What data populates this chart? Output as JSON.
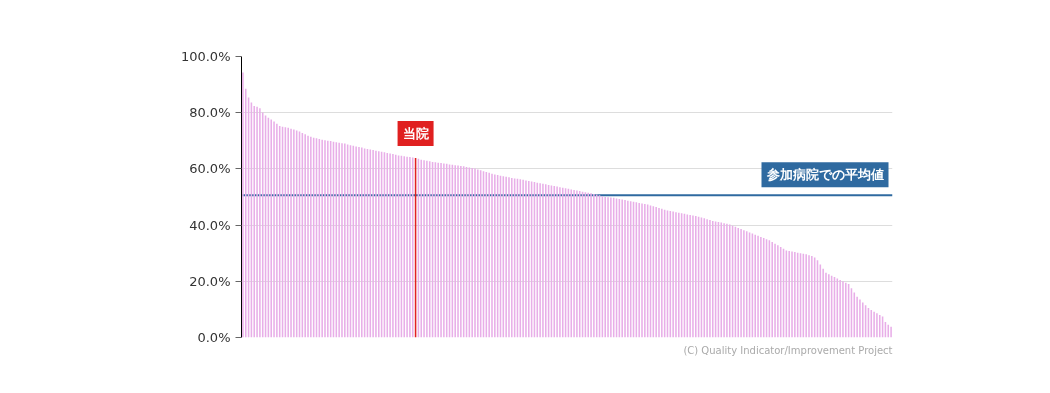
{
  "chart_data": {
    "type": "bar",
    "categories": [
      null,
      null,
      null,
      null,
      null,
      null,
      null,
      null,
      null,
      null,
      null,
      null,
      null,
      null,
      null,
      null,
      null,
      null,
      null,
      null,
      null,
      null,
      null,
      null,
      null,
      null,
      null,
      null,
      null,
      null,
      null,
      null,
      null,
      null,
      null,
      null,
      null,
      null,
      null,
      null,
      null,
      null,
      null,
      null,
      null,
      null,
      null,
      null,
      null,
      null,
      null,
      null,
      null,
      null,
      null,
      null,
      null,
      null,
      null,
      null,
      null,
      null,
      null,
      null,
      null,
      null,
      null,
      null,
      null,
      null,
      null,
      null,
      null,
      null,
      null,
      null,
      null,
      null,
      null,
      null,
      null,
      null,
      null,
      null,
      null,
      null,
      null,
      null,
      null,
      null,
      null,
      null,
      null,
      null,
      null,
      null,
      null,
      null,
      null,
      null,
      null,
      null,
      null,
      null,
      null,
      null,
      null,
      null,
      null,
      null,
      null,
      null,
      null,
      null,
      null,
      null,
      null,
      null,
      null,
      null,
      null,
      null,
      null,
      null,
      null,
      null,
      null,
      null,
      null,
      null,
      null,
      null,
      null,
      null,
      null,
      null,
      null,
      null,
      null,
      null,
      null,
      null,
      null,
      null,
      null,
      null,
      null,
      null,
      null,
      null,
      null,
      null,
      null,
      null,
      null,
      null,
      null,
      null,
      null,
      null,
      null,
      null,
      null,
      null,
      null,
      null,
      null,
      null,
      null,
      null,
      null,
      null,
      null,
      null,
      null,
      null,
      null,
      null,
      null,
      null,
      null,
      null,
      null,
      null,
      null,
      null,
      null,
      null,
      null,
      null,
      null,
      null,
      null,
      null,
      null,
      null,
      null,
      null,
      null,
      null,
      null,
      null,
      null,
      null,
      null,
      null,
      null,
      null,
      null,
      null,
      null,
      null,
      null,
      null,
      null,
      null,
      null,
      null,
      null,
      null,
      null,
      null,
      null,
      null,
      null,
      null,
      null,
      null,
      null,
      null
    ],
    "values": [
      94.3,
      88.5,
      85.4,
      83.6,
      82.4,
      82.1,
      81.6,
      80.1,
      79.0,
      78.2,
      77.6,
      76.9,
      76.1,
      75.3,
      75.0,
      74.8,
      74.6,
      74.3,
      74.0,
      73.7,
      73.3,
      72.8,
      72.3,
      71.8,
      71.4,
      71.1,
      70.9,
      70.6,
      70.4,
      70.2,
      70.0,
      69.9,
      69.7,
      69.5,
      69.3,
      69.1,
      69.0,
      68.7,
      68.4,
      68.2,
      68.0,
      67.8,
      67.6,
      67.3,
      67.1,
      66.9,
      66.7,
      66.5,
      66.3,
      66.1,
      65.9,
      65.7,
      65.5,
      65.3,
      65.0,
      64.8,
      64.7,
      64.5,
      64.3,
      64.2,
      64.1,
      63.9,
      63.6,
      63.3,
      63.1,
      62.9,
      62.7,
      62.5,
      62.4,
      62.2,
      62.1,
      61.9,
      61.8,
      61.6,
      61.5,
      61.3,
      61.2,
      61.0,
      60.9,
      60.7,
      60.5,
      60.3,
      60.1,
      59.8,
      59.5,
      59.2,
      58.9,
      58.6,
      58.3,
      58.0,
      57.8,
      57.6,
      57.4,
      57.2,
      57.0,
      56.8,
      56.6,
      56.5,
      56.3,
      56.1,
      55.9,
      55.7,
      55.5,
      55.3,
      55.1,
      54.9,
      54.7,
      54.5,
      54.3,
      54.1,
      53.9,
      53.7,
      53.5,
      53.3,
      53.1,
      52.9,
      52.7,
      52.5,
      52.3,
      52.1,
      51.9,
      51.7,
      51.5,
      51.3,
      51.1,
      50.9,
      50.6,
      50.3,
      50.0,
      49.9,
      49.8,
      49.7,
      49.5,
      49.3,
      49.1,
      48.9,
      48.7,
      48.5,
      48.3,
      48.1,
      47.9,
      47.7,
      47.5,
      47.3,
      47.0,
      46.7,
      46.4,
      46.1,
      45.8,
      45.5,
      45.2,
      45.0,
      44.8,
      44.6,
      44.4,
      44.2,
      44.0,
      43.8,
      43.6,
      43.4,
      43.2,
      43.0,
      42.7,
      42.4,
      42.1,
      41.8,
      41.5,
      41.3,
      41.1,
      40.9,
      40.7,
      40.5,
      40.2,
      39.8,
      39.4,
      39.0,
      38.6,
      38.2,
      37.8,
      37.4,
      37.0,
      36.6,
      36.2,
      35.8,
      35.4,
      35.0,
      34.6,
      34.0,
      33.4,
      32.8,
      32.2,
      31.6,
      31.0,
      30.8,
      30.6,
      30.4,
      30.2,
      30.0,
      29.8,
      29.6,
      29.3,
      29.0,
      28.5,
      27.5,
      26.0,
      24.5,
      23.0,
      22.5,
      22.0,
      21.5,
      21.0,
      20.5,
      20.0,
      19.5,
      19.0,
      17.5,
      16.0,
      14.5,
      13.5,
      12.5,
      11.5,
      10.5,
      9.8,
      9.2,
      8.6,
      8.0,
      7.5,
      5.5,
      4.5,
      3.8
    ],
    "colors": [
      "#e8aee8",
      "#e8aee8",
      "#e8aee8",
      "#e8aee8",
      "#e8aee8",
      "#e8aee8",
      "#e8aee8",
      "#e8aee8",
      "#e8aee8",
      "#e8aee8",
      "#e8aee8",
      "#e8aee8",
      "#e8aee8",
      "#e8aee8",
      "#e8aee8",
      "#e8aee8",
      "#e8aee8",
      "#e8aee8",
      "#e8aee8",
      "#e8aee8",
      "#e8aee8",
      "#e8aee8",
      "#e8aee8",
      "#e8aee8",
      "#e8aee8",
      "#e8aee8",
      "#e8aee8",
      "#e8aee8",
      "#e8aee8",
      "#e8aee8",
      "#e8aee8",
      "#e8aee8",
      "#e8aee8",
      "#e8aee8",
      "#e8aee8",
      "#e8aee8",
      "#e8aee8",
      "#e8aee8",
      "#e8aee8",
      "#e8aee8",
      "#e8aee8",
      "#e8aee8",
      "#e8aee8",
      "#e8aee8",
      "#e8aee8",
      "#e8aee8",
      "#e8aee8",
      "#e8aee8",
      "#e8aee8",
      "#e8aee8",
      "#e8aee8",
      "#e8aee8",
      "#e8aee8",
      "#e8aee8",
      "#e8aee8",
      "#e8aee8",
      "#e8aee8",
      "#e8aee8",
      "#e8aee8",
      "#e8aee8",
      "#e8aee8",
      "#e02020",
      "#e8aee8",
      "#e8aee8",
      "#e8aee8",
      "#e8aee8",
      "#e8aee8",
      "#e8aee8",
      "#e8aee8",
      "#e8aee8",
      "#e8aee8",
      "#e8aee8",
      "#e8aee8",
      "#e8aee8",
      "#e8aee8",
      "#e8aee8",
      "#e8aee8",
      "#e8aee8",
      "#e8aee8",
      "#e8aee8",
      "#e8aee8",
      "#e8aee8",
      "#e8aee8",
      "#e8aee8",
      "#e8aee8",
      "#e8aee8",
      "#e8aee8",
      "#e8aee8",
      "#e8aee8",
      "#e8aee8",
      "#e8aee8",
      "#e8aee8",
      "#e8aee8",
      "#e8aee8",
      "#e8aee8",
      "#e8aee8",
      "#e8aee8",
      "#e8aee8",
      "#e8aee8",
      "#e8aee8",
      "#e8aee8",
      "#e8aee8",
      "#e8aee8",
      "#e8aee8",
      "#e8aee8",
      "#e8aee8",
      "#e8aee8",
      "#e8aee8",
      "#e8aee8",
      "#e8aee8",
      "#e8aee8",
      "#e8aee8",
      "#e8aee8",
      "#e8aee8",
      "#e8aee8",
      "#e8aee8",
      "#e8aee8",
      "#e8aee8",
      "#e8aee8",
      "#e8aee8",
      "#e8aee8",
      "#e8aee8",
      "#e8aee8",
      "#e8aee8",
      "#e8aee8",
      "#e8aee8",
      "#e8aee8",
      "#e8aee8",
      "#e8aee8",
      "#e8aee8",
      "#e8aee8",
      "#e8aee8",
      "#e8aee8",
      "#e8aee8",
      "#e8aee8",
      "#e8aee8",
      "#e8aee8",
      "#e8aee8",
      "#e8aee8",
      "#e8aee8",
      "#e8aee8",
      "#e8aee8",
      "#e8aee8",
      "#e8aee8",
      "#e8aee8",
      "#e8aee8",
      "#e8aee8",
      "#e8aee8",
      "#e8aee8",
      "#e8aee8",
      "#e8aee8",
      "#e8aee8",
      "#e8aee8",
      "#e8aee8",
      "#e8aee8",
      "#e8aee8",
      "#e8aee8",
      "#e8aee8",
      "#e8aee8",
      "#e8aee8",
      "#e8aee8",
      "#e8aee8",
      "#e8aee8",
      "#e8aee8",
      "#e8aee8",
      "#e8aee8",
      "#e8aee8",
      "#e8aee8",
      "#e8aee8",
      "#e8aee8",
      "#e8aee8",
      "#e8aee8",
      "#e8aee8",
      "#e8aee8",
      "#e8aee8",
      "#e8aee8",
      "#e8aee8",
      "#e8aee8",
      "#e8aee8",
      "#e8aee8",
      "#e8aee8",
      "#e8aee8",
      "#e8aee8",
      "#e8aee8",
      "#e8aee8",
      "#e8aee8",
      "#e8aee8",
      "#e8aee8",
      "#e8aee8",
      "#e8aee8",
      "#e8aee8",
      "#e8aee8",
      "#e8aee8",
      "#e8aee8",
      "#e8aee8",
      "#e8aee8",
      "#e8aee8",
      "#e8aee8",
      "#e8aee8",
      "#e8aee8",
      "#e8aee8",
      "#e8aee8",
      "#e8aee8",
      "#e8aee8",
      "#e8aee8",
      "#e8aee8",
      "#e8aee8",
      "#e8aee8",
      "#e8aee8",
      "#e8aee8",
      "#e8aee8",
      "#e8aee8",
      "#e8aee8",
      "#e8aee8",
      "#e8aee8",
      "#e8aee8",
      "#e8aee8",
      "#e8aee8",
      "#e8aee8",
      "#e8aee8",
      "#e8aee8",
      "#e8aee8",
      "#e8aee8",
      "#e8aee8",
      "#e8aee8",
      "#e8aee8",
      "#e8aee8",
      "#e8aee8",
      "#e8aee8",
      "#e8aee8"
    ],
    "annotations": [
      {
        "text": "当院",
        "y": 63.9
      },
      "(C) Quality Indicator/Improvement Project"
    ],
    "ref_lines": [
      {
        "axis": "y",
        "value": 50.6,
        "label": "参加病院での平均値",
        "color": "#2f6aa0"
      }
    ],
    "ylim": [
      0,
      100
    ],
    "yticks": [
      {
        "value": 0,
        "label": "0.0%"
      },
      {
        "value": 20,
        "label": "20.0%"
      },
      {
        "value": 40,
        "label": "40.0%"
      },
      {
        "value": 60,
        "label": "60.0%"
      },
      {
        "value": 80,
        "label": "80.0%"
      },
      {
        "value": 100,
        "label": "100.0%"
      }
    ],
    "grid": "y",
    "tick_labels": "y"
  }
}
